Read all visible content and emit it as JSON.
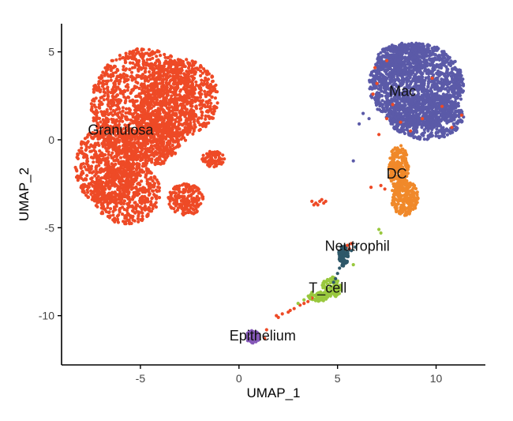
{
  "chart_data": {
    "type": "scatter",
    "xlabel": "UMAP_1",
    "ylabel": "UMAP_2",
    "xlim": [
      -9,
      12.5
    ],
    "ylim": [
      -12.8,
      6.6
    ],
    "x_ticks": [
      -5,
      0,
      5,
      10
    ],
    "y_ticks": [
      5,
      0,
      -5,
      -10
    ],
    "grid": false,
    "legend": "none",
    "series": [
      {
        "name": "Granulosa",
        "color": "#ee4a26",
        "label_at": [
          -6,
          0.3
        ],
        "regions": [
          {
            "cx": -4.8,
            "cy": 2.0,
            "rx": 2.7,
            "ry": 3.2,
            "n": 1300
          },
          {
            "cx": -3.0,
            "cy": 2.4,
            "rx": 2.0,
            "ry": 2.2,
            "n": 600
          },
          {
            "cx": -6.7,
            "cy": -1.5,
            "rx": 1.6,
            "ry": 2.3,
            "n": 600
          },
          {
            "cx": -5.7,
            "cy": -3.0,
            "rx": 1.7,
            "ry": 1.8,
            "n": 500
          },
          {
            "cx": -2.7,
            "cy": -3.4,
            "rx": 0.9,
            "ry": 0.9,
            "n": 180
          },
          {
            "cx": -4.5,
            "cy": 0.0,
            "rx": 1.5,
            "ry": 1.5,
            "n": 400
          },
          {
            "cx": -1.3,
            "cy": -1.1,
            "rx": 0.6,
            "ry": 0.45,
            "n": 80
          }
        ]
      },
      {
        "name": "Mac",
        "color": "#5b5aa8",
        "label_at": [
          8.3,
          2.5
        ],
        "regions": [
          {
            "cx": 9.0,
            "cy": 3.1,
            "rx": 2.4,
            "ry": 2.4,
            "n": 1400
          },
          {
            "cx": 9.5,
            "cy": 1.3,
            "rx": 1.9,
            "ry": 1.3,
            "n": 600
          },
          {
            "cx": 8.3,
            "cy": 4.6,
            "rx": 1.3,
            "ry": 0.9,
            "n": 250
          }
        ]
      },
      {
        "name": "DC",
        "color": "#f0892a",
        "label_at": [
          8.0,
          -2.2
        ],
        "regions": [
          {
            "cx": 8.1,
            "cy": -1.6,
            "rx": 0.5,
            "ry": 1.3,
            "n": 220
          },
          {
            "cx": 8.4,
            "cy": -3.3,
            "rx": 0.7,
            "ry": 1.0,
            "n": 230
          }
        ]
      },
      {
        "name": "Neutrophil",
        "color": "#2e5869",
        "label_at": [
          6.0,
          -6.3
        ],
        "regions": [
          {
            "cx": 5.3,
            "cy": -6.6,
            "rx": 0.25,
            "ry": 0.6,
            "n": 90
          }
        ]
      },
      {
        "name": "T_cell",
        "color": "#99c83e",
        "label_at": [
          4.5,
          -8.7
        ],
        "regions": [
          {
            "cx": 4.7,
            "cy": -8.4,
            "rx": 0.5,
            "ry": 0.6,
            "n": 90
          },
          {
            "cx": 4.0,
            "cy": -8.9,
            "rx": 0.5,
            "ry": 0.3,
            "n": 80
          }
        ]
      },
      {
        "name": "Epithelium",
        "color": "#8558b8",
        "label_at": [
          1.2,
          -11.4
        ],
        "regions": [
          {
            "cx": 0.7,
            "cy": -11.2,
            "rx": 0.35,
            "ry": 0.35,
            "n": 80
          }
        ]
      }
    ],
    "scattered_points": [
      {
        "series": "Granulosa",
        "points": [
          [
            3.9,
            -3.6
          ],
          [
            4.1,
            -3.5
          ],
          [
            4.3,
            -3.6
          ],
          [
            3.7,
            -3.5
          ],
          [
            4.0,
            -3.7
          ],
          [
            4.4,
            -3.5
          ],
          [
            3.8,
            -3.7
          ],
          [
            4.2,
            -3.4
          ],
          [
            3.5,
            -9.2
          ],
          [
            3.1,
            -9.4
          ],
          [
            2.8,
            -9.6
          ],
          [
            2.5,
            -9.8
          ],
          [
            2.2,
            -9.9
          ],
          [
            1.9,
            -10.0
          ],
          [
            3.3,
            -9.3
          ],
          [
            2.6,
            -9.7
          ],
          [
            2.0,
            -10.1
          ],
          [
            3.7,
            -9.0
          ],
          [
            1.4,
            -10.8
          ],
          [
            1.3,
            -11.3
          ],
          [
            5.5,
            -6.0
          ],
          [
            5.7,
            -5.9
          ],
          [
            5.6,
            -6.2
          ],
          [
            6.7,
            -2.7
          ],
          [
            7.4,
            -2.8
          ],
          [
            7.2,
            -2.6
          ],
          [
            6.9,
            4.1
          ],
          [
            7.0,
            3.2
          ],
          [
            7.8,
            2.0
          ],
          [
            8.7,
            0.5
          ],
          [
            9.3,
            1.2
          ],
          [
            10.3,
            1.9
          ],
          [
            7.5,
            4.5
          ],
          [
            9.8,
            3.5
          ],
          [
            8.2,
            1.0
          ],
          [
            11.3,
            1.4
          ],
          [
            10.8,
            0.7
          ],
          [
            6.8,
            2.6
          ],
          [
            7.1,
            0.3
          ],
          [
            7.5,
            1.2
          ]
        ]
      },
      {
        "series": "Mac",
        "points": [
          [
            6.3,
            1.5
          ],
          [
            6.6,
            1.2
          ],
          [
            5.8,
            -1.2
          ],
          [
            6.1,
            0.9
          ]
        ]
      },
      {
        "series": "T_cell",
        "points": [
          [
            7.1,
            -5.1
          ],
          [
            7.2,
            -5.3
          ],
          [
            5.8,
            -7.1
          ],
          [
            3.0,
            -9.3
          ],
          [
            3.3,
            -9.1
          ],
          [
            3.6,
            -9.0
          ]
        ]
      },
      {
        "series": "Neutrophil",
        "points": [
          [
            5.9,
            -6.1
          ],
          [
            5.7,
            -6.3
          ],
          [
            5.1,
            -7.3
          ],
          [
            5.0,
            -7.6
          ],
          [
            4.9,
            -7.9
          ],
          [
            4.8,
            -8.1
          ]
        ]
      }
    ]
  }
}
